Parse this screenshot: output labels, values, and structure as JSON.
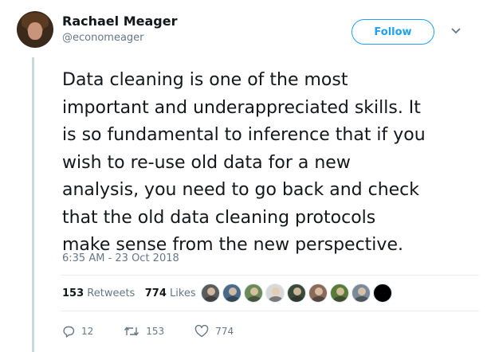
{
  "author": {
    "name": "Rachael Meager",
    "handle": "@economeager"
  },
  "follow_button": {
    "label": "Follow"
  },
  "tweet": {
    "lines": [
      "Data cleaning is one of the most",
      "important and underappreciated skills. It",
      "is so fundamental to inference that if you",
      "wish to re-use old data for a new",
      "analysis, you need to go back and check",
      "that the old data cleaning protocols",
      "make sense from the new perspective."
    ],
    "timestamp": "6:35 AM - 23 Oct 2018"
  },
  "stats": {
    "retweets_count": "153",
    "retweets_label": "Retweets",
    "likes_count": "774",
    "likes_label": "Likes"
  },
  "likers": [
    {
      "color": "#5b5b5b"
    },
    {
      "color": "#4a6a8a"
    },
    {
      "color": "#6b8a5a"
    },
    {
      "color": "#d9d9d9"
    },
    {
      "color": "#3a4a3a"
    },
    {
      "color": "#8a6a5a"
    },
    {
      "color": "#5a7a3a"
    },
    {
      "color": "#7a8a9a"
    },
    {
      "color": "#000000"
    }
  ],
  "actions": {
    "reply_count": "12",
    "retweet_count": "153",
    "like_count": "774"
  },
  "colors": {
    "accent": "#1da1f2",
    "muted_text": "#657786",
    "thread_line": "#ccd6dd",
    "divider": "#e6ecf0"
  },
  "icons": [
    "avatar",
    "follow-button",
    "chevron-down-icon",
    "reply-icon",
    "retweet-icon",
    "heart-icon"
  ]
}
